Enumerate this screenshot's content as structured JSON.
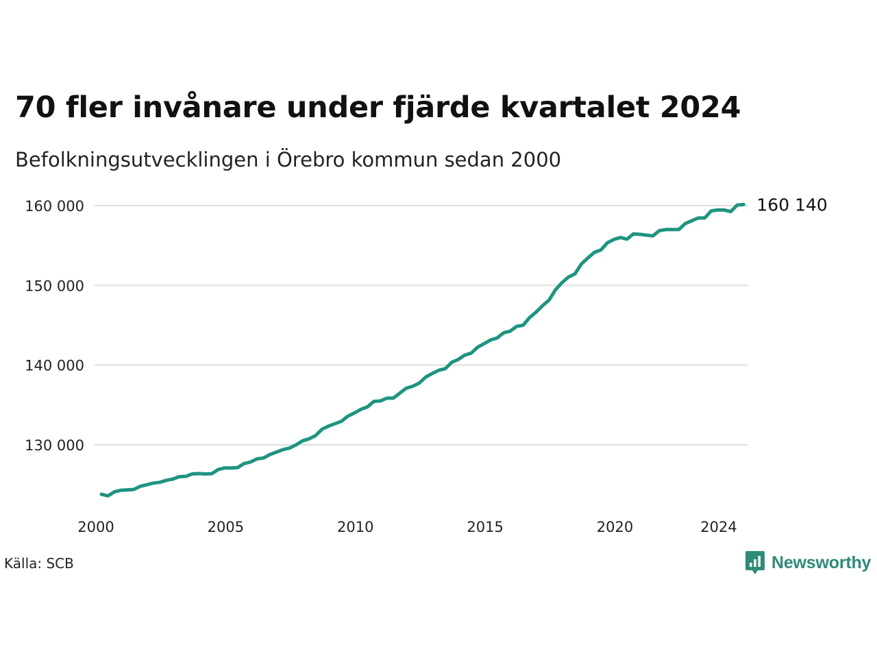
{
  "title": "70 fler invånare under fjärde kvartalet 2024",
  "subtitle": "Befolkningsutvecklingen i Örebro kommun sedan 2000",
  "source": "Källa: SCB",
  "brand": {
    "name": "Newsworthy",
    "icon": "newsworthy-chart-bubble-icon",
    "color": "#2e8b78"
  },
  "colors": {
    "line": "#1f9480",
    "grid": "#dddddd"
  },
  "chart_data": {
    "type": "line",
    "title": "70 fler invånare under fjärde kvartalet 2024",
    "subtitle": "Befolkningsutvecklingen i Örebro kommun sedan 2000",
    "xlabel": "",
    "ylabel": "",
    "x_ticks": [
      {
        "value": 2000,
        "label": "2000"
      },
      {
        "value": 2005,
        "label": "2005"
      },
      {
        "value": 2010,
        "label": "2010"
      },
      {
        "value": 2015,
        "label": "2015"
      },
      {
        "value": 2020,
        "label": "2020"
      },
      {
        "value": 2024,
        "label": "2024"
      }
    ],
    "y_ticks": [
      {
        "value": 130000,
        "label": "130 000"
      },
      {
        "value": 140000,
        "label": "140 000"
      },
      {
        "value": 150000,
        "label": "150 000"
      },
      {
        "value": 160000,
        "label": "160 000"
      }
    ],
    "xlim": [
      2000,
      2025
    ],
    "ylim": [
      122000,
      162000
    ],
    "grid": "horizontal",
    "end_label": "160 140",
    "series": [
      {
        "x": [
          2000.0,
          2000.25,
          2000.5,
          2000.75,
          2001.0,
          2001.25,
          2001.5,
          2001.75,
          2002.0,
          2002.25,
          2002.5,
          2002.75,
          2003.0,
          2003.25,
          2003.5,
          2003.75,
          2004.0,
          2004.25,
          2004.5,
          2004.75,
          2005.0,
          2005.25,
          2005.5,
          2005.75,
          2006.0,
          2006.25,
          2006.5,
          2006.75,
          2007.0,
          2007.25,
          2007.5,
          2007.75,
          2008.0,
          2008.25,
          2008.5,
          2008.75,
          2009.0,
          2009.25,
          2009.5,
          2009.75,
          2010.0,
          2010.25,
          2010.5,
          2010.75,
          2011.0,
          2011.25,
          2011.5,
          2011.75,
          2012.0,
          2012.25,
          2012.5,
          2012.75,
          2013.0,
          2013.25,
          2013.5,
          2013.75,
          2014.0,
          2014.25,
          2014.5,
          2014.75,
          2015.0,
          2015.25,
          2015.5,
          2015.75,
          2016.0,
          2016.25,
          2016.5,
          2016.75,
          2017.0,
          2017.25,
          2017.5,
          2017.75,
          2018.0,
          2018.25,
          2018.5,
          2018.75,
          2019.0,
          2019.25,
          2019.5,
          2019.75,
          2020.0,
          2020.25,
          2020.5,
          2020.75,
          2021.0,
          2021.25,
          2021.5,
          2021.75,
          2022.0,
          2022.25,
          2022.5,
          2022.75,
          2023.0,
          2023.25,
          2023.5,
          2023.75,
          2024.0,
          2024.25,
          2024.5,
          2024.75
        ],
        "values": [
          123800,
          123600,
          124100,
          124300,
          124350,
          124400,
          124800,
          125000,
          125200,
          125300,
          125550,
          125700,
          126000,
          126050,
          126350,
          126400,
          126350,
          126380,
          126900,
          127100,
          127100,
          127150,
          127650,
          127850,
          128250,
          128350,
          128800,
          129100,
          129400,
          129600,
          130000,
          130500,
          130750,
          131150,
          131950,
          132350,
          132650,
          132950,
          133600,
          134000,
          134450,
          134750,
          135450,
          135500,
          135850,
          135850,
          136500,
          137100,
          137350,
          137750,
          138500,
          138950,
          139350,
          139550,
          140350,
          140700,
          141250,
          141500,
          142250,
          142700,
          143150,
          143400,
          144050,
          144250,
          144850,
          145000,
          145950,
          146650,
          147450,
          148150,
          149450,
          150350,
          151050,
          151450,
          152700,
          153450,
          154150,
          154450,
          155350,
          155750,
          156000,
          155800,
          156450,
          156400,
          156300,
          156200,
          156850,
          157000,
          157000,
          157000,
          157750,
          158100,
          158450,
          158450,
          159350,
          159450,
          159450,
          159250,
          160070,
          160140
        ]
      }
    ]
  }
}
